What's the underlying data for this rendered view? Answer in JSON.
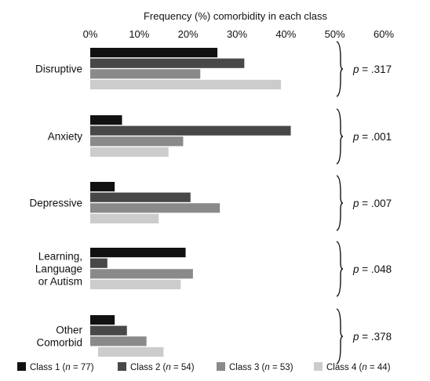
{
  "chart_data": {
    "type": "bar",
    "orientation": "horizontal",
    "title": "Frequency (%) comorbidity in each class",
    "x_ticks": [
      "0%",
      "10%",
      "20%",
      "30%",
      "40%",
      "50%",
      "60%"
    ],
    "xlim": [
      0,
      60
    ],
    "grid": false,
    "legend_position": "bottom",
    "categories": [
      {
        "lines": [
          "Disruptive"
        ],
        "p_prefix": "p",
        "p_value": " = .317"
      },
      {
        "lines": [
          "Anxiety"
        ],
        "p_prefix": "p",
        "p_value": " = .001"
      },
      {
        "lines": [
          "Depressive"
        ],
        "p_prefix": "p",
        "p_value": " = .007"
      },
      {
        "lines": [
          "Learning,",
          "Language",
          "or Autism"
        ],
        "p_prefix": "p",
        "p_value": " = .048"
      },
      {
        "lines": [
          "Other",
          "Comorbid"
        ],
        "p_prefix": "p",
        "p_value": " = .378"
      }
    ],
    "series": [
      {
        "name": "Class 1",
        "n_label": "n",
        "n_value": " = 77)",
        "color": "#111111",
        "values": [
          26,
          6.5,
          5,
          19.5,
          5
        ]
      },
      {
        "name": "Class 2",
        "n_label": "n",
        "n_value": " = 54)",
        "color": "#484848",
        "values": [
          31.5,
          41,
          20.5,
          3.5,
          7.5
        ]
      },
      {
        "name": "Class 3",
        "n_label": "n",
        "n_value": " = 53)",
        "color": "#8a8a8a",
        "values": [
          22.5,
          19,
          26.5,
          21,
          11.5
        ]
      },
      {
        "name": "Class 4",
        "n_label": "n",
        "n_value": " = 44)",
        "color": "#cccccc",
        "values": [
          39,
          16,
          14,
          18.5,
          15
        ]
      }
    ]
  }
}
